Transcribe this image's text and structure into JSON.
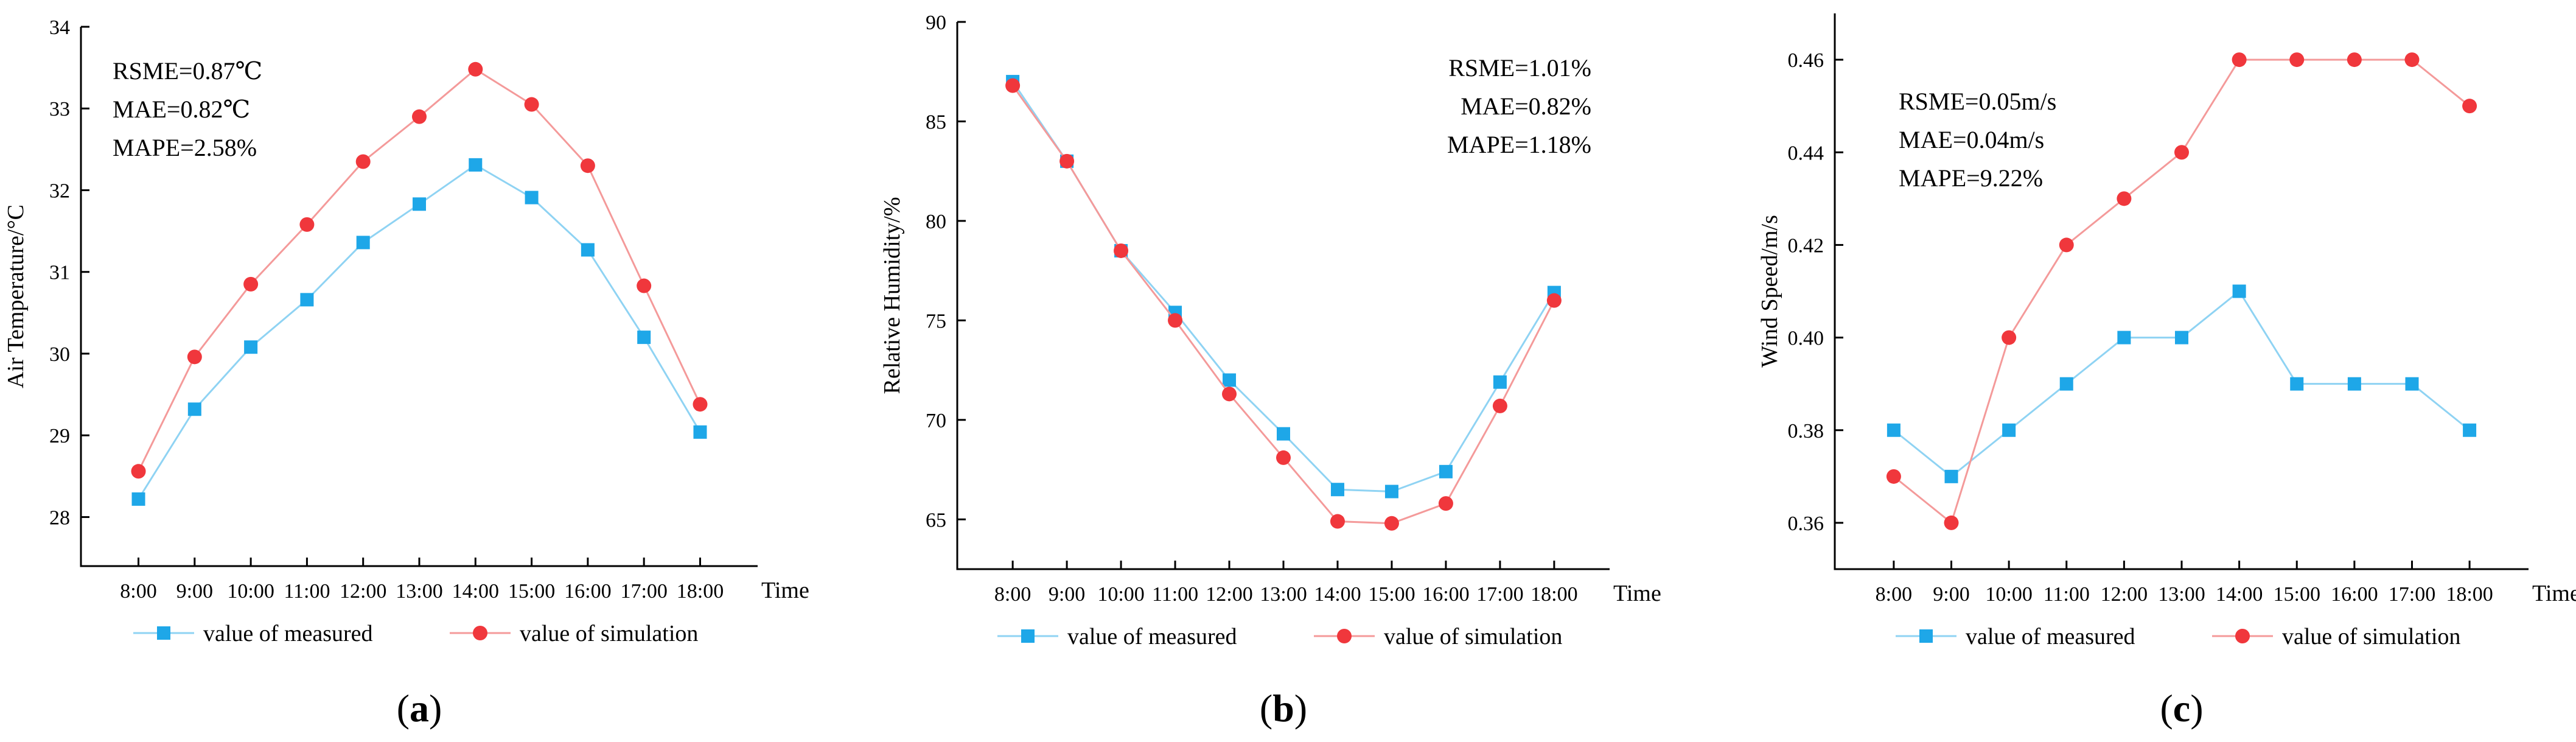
{
  "colors": {
    "measured": "#1ea7e8",
    "simulation": "#f0373c",
    "measured_line": "#8fd3f3",
    "simulation_line": "#f49a9a"
  },
  "chart_data": [
    {
      "type": "line",
      "id": "a",
      "caption": "a",
      "ylabel": "Air Temperature/°C",
      "xlabel": "Time",
      "categories": [
        "8:00",
        "9:00",
        "10:00",
        "11:00",
        "12:00",
        "13:00",
        "14:00",
        "15:00",
        "16:00",
        "17:00",
        "18:00"
      ],
      "ylim": [
        27.4,
        34
      ],
      "yticks": [
        28,
        29,
        30,
        31,
        32,
        33,
        34
      ],
      "ytick_labels": [
        "28",
        "29",
        "30",
        "31",
        "32",
        "33",
        "34"
      ],
      "series": [
        {
          "name": "value of measured",
          "values": [
            28.22,
            29.32,
            30.08,
            30.66,
            31.36,
            31.83,
            32.31,
            31.91,
            31.27,
            30.2,
            29.04
          ]
        },
        {
          "name": "value of simulation",
          "values": [
            28.56,
            29.96,
            30.85,
            31.58,
            32.35,
            32.9,
            33.48,
            33.05,
            32.3,
            30.83,
            29.38
          ]
        }
      ],
      "annotations": [
        "RSME=0.87℃",
        "MAE=0.82℃",
        "MAPE=2.58%"
      ],
      "annotation_position": "top-left",
      "legend_position": "bottom"
    },
    {
      "type": "line",
      "id": "b",
      "caption": "b",
      "ylabel": "Relative Humidity/%",
      "xlabel": "Time",
      "categories": [
        "8:00",
        "9:00",
        "10:00",
        "11:00",
        "12:00",
        "13:00",
        "14:00",
        "15:00",
        "16:00",
        "17:00",
        "18:00"
      ],
      "ylim": [
        62.5,
        90
      ],
      "yticks": [
        65,
        70,
        75,
        80,
        85,
        90
      ],
      "ytick_labels": [
        "65",
        "70",
        "75",
        "80",
        "85",
        "90"
      ],
      "series": [
        {
          "name": "value of measured",
          "values": [
            87.0,
            83.0,
            78.5,
            75.4,
            72.0,
            69.3,
            66.5,
            66.4,
            67.4,
            71.9,
            76.4
          ]
        },
        {
          "name": "value of simulation",
          "values": [
            86.8,
            83.0,
            78.5,
            75.0,
            71.3,
            68.1,
            64.9,
            64.8,
            65.8,
            70.7,
            76.0
          ]
        }
      ],
      "annotations": [
        "RSME=1.01%",
        "MAE=0.82%",
        "MAPE=1.18%"
      ],
      "annotation_position": "top-right",
      "legend_position": "bottom"
    },
    {
      "type": "line",
      "id": "c",
      "caption": "c",
      "ylabel": "Wind Speed/m/s",
      "xlabel": "Time",
      "categories": [
        "8:00",
        "9:00",
        "10:00",
        "11:00",
        "12:00",
        "13:00",
        "14:00",
        "15:00",
        "16:00",
        "17:00",
        "18:00"
      ],
      "ylim": [
        0.35,
        0.47
      ],
      "yticks": [
        0.36,
        0.38,
        0.4,
        0.42,
        0.44,
        0.46
      ],
      "ytick_labels": [
        "0.36",
        "0.38",
        "0.40",
        "0.42",
        "0.44",
        "0.46"
      ],
      "series": [
        {
          "name": "value of measured",
          "values": [
            0.38,
            0.37,
            0.38,
            0.39,
            0.4,
            0.4,
            0.41,
            0.39,
            0.39,
            0.39,
            0.38
          ]
        },
        {
          "name": "value of simulation",
          "values": [
            0.37,
            0.36,
            0.4,
            0.42,
            0.43,
            0.44,
            0.46,
            0.46,
            0.46,
            0.46,
            0.45
          ]
        }
      ],
      "annotations": [
        "RSME=0.05m/s",
        "MAE=0.04m/s",
        "MAPE=9.22%"
      ],
      "annotation_position": "top-left",
      "legend_position": "bottom"
    }
  ]
}
